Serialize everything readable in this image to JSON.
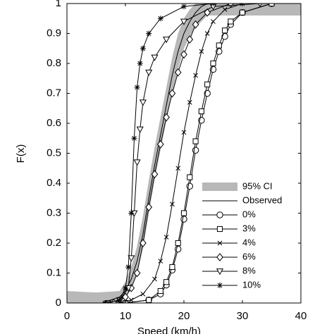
{
  "chart_data": {
    "type": "line",
    "xlabel": "Speed (km/h)",
    "ylabel": "F(x)",
    "xlim": [
      0,
      40
    ],
    "ylim": [
      0,
      1
    ],
    "xticks": [
      0,
      10,
      20,
      30,
      40
    ],
    "yticks": [
      0,
      0.1,
      0.2,
      0.3,
      0.4,
      0.5,
      0.6,
      0.7,
      0.8,
      0.9,
      1
    ],
    "legend": "lower right",
    "series": [
      {
        "name": "95% CI",
        "kind": "band",
        "color": "#b8b8b8",
        "x": [
          0,
          5,
          9,
          10,
          11,
          12,
          13,
          14,
          15,
          16,
          17,
          18,
          19,
          20,
          21,
          22,
          23,
          24,
          30,
          40
        ],
        "lower": [
          0,
          0,
          0,
          0.02,
          0.05,
          0.1,
          0.18,
          0.3,
          0.41,
          0.51,
          0.61,
          0.7,
          0.78,
          0.85,
          0.89,
          0.92,
          0.94,
          0.96,
          0.96,
          0.96
        ],
        "upper": [
          0.04,
          0.035,
          0.04,
          0.07,
          0.12,
          0.19,
          0.29,
          0.41,
          0.52,
          0.62,
          0.72,
          0.82,
          0.9,
          0.95,
          0.98,
          1,
          1,
          1,
          1,
          1
        ]
      },
      {
        "name": "Observed",
        "color": "#000000",
        "marker": "none",
        "x": [
          6,
          9,
          10,
          11,
          12,
          13,
          14,
          15,
          16,
          17,
          18,
          19,
          20,
          21,
          22,
          23,
          24
        ],
        "values": [
          0,
          0.02,
          0.04,
          0.08,
          0.14,
          0.23,
          0.35,
          0.46,
          0.56,
          0.66,
          0.76,
          0.84,
          0.9,
          0.94,
          0.97,
          0.99,
          1
        ]
      },
      {
        "name": "0%",
        "color": "#000000",
        "marker": "circle",
        "x": [
          10,
          14,
          16,
          17,
          18,
          19,
          20,
          21,
          22,
          23,
          24,
          25,
          26,
          27,
          28,
          30,
          35
        ],
        "values": [
          0,
          0.01,
          0.03,
          0.06,
          0.11,
          0.18,
          0.28,
          0.39,
          0.51,
          0.61,
          0.7,
          0.78,
          0.84,
          0.89,
          0.93,
          0.97,
          1
        ]
      },
      {
        "name": "3%",
        "color": "#000000",
        "marker": "square",
        "x": [
          10,
          14,
          16,
          17,
          18,
          19,
          20,
          21,
          22,
          23,
          24,
          25,
          26,
          27,
          28,
          30,
          35
        ],
        "values": [
          0,
          0.01,
          0.04,
          0.07,
          0.12,
          0.2,
          0.3,
          0.42,
          0.54,
          0.64,
          0.73,
          0.8,
          0.86,
          0.91,
          0.94,
          0.97,
          1
        ]
      },
      {
        "name": "4%",
        "color": "#000000",
        "marker": "x",
        "x": [
          9,
          11,
          13,
          15,
          16,
          17,
          18,
          19,
          20,
          21,
          22,
          23,
          24,
          25,
          27,
          30
        ],
        "values": [
          0,
          0.01,
          0.03,
          0.08,
          0.14,
          0.22,
          0.33,
          0.45,
          0.57,
          0.67,
          0.76,
          0.84,
          0.9,
          0.94,
          0.98,
          1
        ]
      },
      {
        "name": "6%",
        "color": "#000000",
        "marker": "diamond",
        "x": [
          8,
          10,
          11,
          12,
          13,
          14,
          15,
          16,
          17,
          18,
          19,
          20,
          21,
          22,
          24,
          28
        ],
        "values": [
          0,
          0.02,
          0.05,
          0.1,
          0.2,
          0.32,
          0.43,
          0.53,
          0.62,
          0.7,
          0.77,
          0.83,
          0.88,
          0.93,
          0.97,
          1
        ]
      },
      {
        "name": "8%",
        "color": "#000000",
        "marker": "triangle",
        "x": [
          7,
          9,
          10.5,
          11,
          11.5,
          12,
          12.5,
          13,
          14,
          15,
          17,
          20,
          25,
          33
        ],
        "values": [
          0,
          0.01,
          0.05,
          0.15,
          0.3,
          0.47,
          0.58,
          0.67,
          0.77,
          0.82,
          0.88,
          0.94,
          0.99,
          1
        ]
      },
      {
        "name": "10%",
        "color": "#000000",
        "marker": "star",
        "x": [
          6.5,
          7,
          9,
          10,
          10.5,
          11,
          11.5,
          12,
          12.5,
          13,
          14,
          16,
          20,
          25
        ],
        "values": [
          0,
          0,
          0.01,
          0.05,
          0.12,
          0.3,
          0.55,
          0.72,
          0.8,
          0.85,
          0.9,
          0.95,
          0.99,
          1
        ]
      }
    ]
  }
}
